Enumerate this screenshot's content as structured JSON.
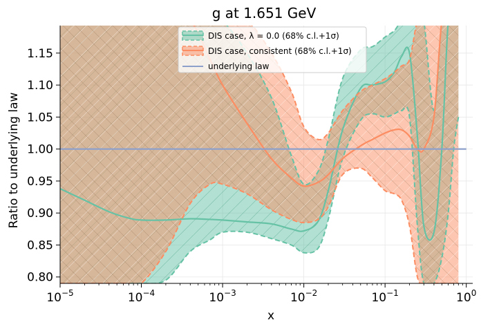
{
  "chart_data": {
    "type": "line",
    "title": "g at 1.651 GeV",
    "xlabel": "x",
    "ylabel": "Ratio to underlying law",
    "xscale": "log",
    "xlim": [
      1e-05,
      1.2
    ],
    "ylim": [
      0.79,
      1.193
    ],
    "grid": true,
    "legend_position": "top-center",
    "x_ticks": [
      {
        "value": 1e-05,
        "base": "10",
        "exp": "−5"
      },
      {
        "value": 0.0001,
        "base": "10",
        "exp": "−4"
      },
      {
        "value": 0.001,
        "base": "10",
        "exp": "−3"
      },
      {
        "value": 0.01,
        "base": "10",
        "exp": "−2"
      },
      {
        "value": 0.1,
        "base": "10",
        "exp": "−1"
      },
      {
        "value": 1,
        "base": "10",
        "exp": "0"
      }
    ],
    "y_ticks": [
      0.8,
      0.85,
      0.9,
      0.95,
      1.0,
      1.05,
      1.1,
      1.15
    ],
    "y_tick_labels": [
      "0.80",
      "0.85",
      "0.90",
      "0.95",
      "1.00",
      "1.05",
      "1.10",
      "1.15"
    ],
    "legend": [
      "DIS case, λ = 0.0 (68% c.l.+1σ)",
      "DIS case, consistent (68% c.l.+1σ)",
      "underlying law"
    ],
    "colors": {
      "green_line": "#66c2a5",
      "green_fill": "#66c2a5",
      "orange_line": "#fc8d62",
      "orange_fill": "#fc8d62",
      "underlying": "#8da0cb"
    },
    "series": [
      {
        "name": "DIS case, λ = 0.0 (68% c.l.+1σ)",
        "x": [
          1e-05,
          2e-05,
          4e-05,
          7e-05,
          0.0001,
          0.0002,
          0.0004,
          0.0007,
          0.001,
          0.002,
          0.004,
          0.007,
          0.01,
          0.015,
          0.02,
          0.03,
          0.05,
          0.07,
          0.1,
          0.13,
          0.16,
          0.2,
          0.25,
          0.3,
          0.4,
          0.5,
          0.6,
          0.7,
          0.8
        ],
        "central": [
          0.938,
          0.92,
          0.902,
          0.892,
          0.889,
          0.889,
          0.891,
          0.89,
          0.889,
          0.886,
          0.883,
          0.875,
          0.872,
          0.887,
          0.935,
          1.03,
          1.095,
          1.1,
          1.105,
          1.12,
          1.145,
          1.15,
          1.02,
          0.88,
          0.87,
          1.0,
          1.2,
          1.2,
          1.2
        ],
        "upper": [
          1.2,
          1.2,
          1.2,
          1.2,
          1.2,
          1.2,
          1.2,
          1.2,
          1.2,
          1.15,
          1.08,
          0.99,
          0.945,
          0.965,
          1.015,
          1.11,
          1.155,
          1.16,
          1.175,
          1.185,
          1.2,
          1.2,
          1.2,
          1.2,
          1.06,
          1.2,
          1.2,
          1.2,
          1.2
        ],
        "lower": [
          0.79,
          0.79,
          0.79,
          0.79,
          0.79,
          0.795,
          0.84,
          0.858,
          0.87,
          0.87,
          0.86,
          0.85,
          0.838,
          0.845,
          0.89,
          0.985,
          1.045,
          1.055,
          1.05,
          1.055,
          1.06,
          1.05,
          0.88,
          0.79,
          0.79,
          0.83,
          0.9,
          1.0,
          1.05
        ]
      },
      {
        "name": "DIS case, consistent (68% c.l.+1σ)",
        "x": [
          1e-05,
          2e-05,
          4e-05,
          7e-05,
          0.0001,
          0.0002,
          0.0004,
          0.0007,
          0.001,
          0.002,
          0.004,
          0.007,
          0.01,
          0.015,
          0.02,
          0.03,
          0.05,
          0.07,
          0.1,
          0.13,
          0.16,
          0.2,
          0.25,
          0.3,
          0.4,
          0.5,
          0.6,
          0.7,
          0.8
        ],
        "central": [
          1.2,
          1.2,
          1.2,
          1.2,
          1.2,
          1.2,
          1.2,
          1.14,
          1.1,
          1.04,
          0.985,
          0.955,
          0.942,
          0.948,
          0.96,
          0.985,
          1.005,
          1.015,
          1.025,
          1.03,
          1.03,
          1.02,
          1.0,
          1.0,
          1.05,
          1.2,
          1.2,
          1.2,
          1.2
        ],
        "upper": [
          1.2,
          1.2,
          1.2,
          1.2,
          1.2,
          1.2,
          1.2,
          1.2,
          1.2,
          1.2,
          1.15,
          1.09,
          1.035,
          1.015,
          1.025,
          1.06,
          1.09,
          1.1,
          1.11,
          1.12,
          1.13,
          1.14,
          1.2,
          1.2,
          1.2,
          1.2,
          1.2,
          1.2,
          1.2
        ],
        "lower": [
          0.79,
          0.79,
          0.79,
          0.79,
          0.79,
          0.84,
          0.915,
          0.945,
          0.945,
          0.93,
          0.905,
          0.89,
          0.885,
          0.89,
          0.91,
          0.96,
          0.97,
          0.955,
          0.935,
          0.93,
          0.92,
          0.88,
          0.8,
          0.79,
          0.79,
          0.79,
          0.79,
          0.79,
          0.79
        ]
      },
      {
        "name": "underlying law",
        "x": [
          1e-05,
          1.0
        ],
        "values": [
          1.0,
          1.0
        ]
      }
    ]
  }
}
